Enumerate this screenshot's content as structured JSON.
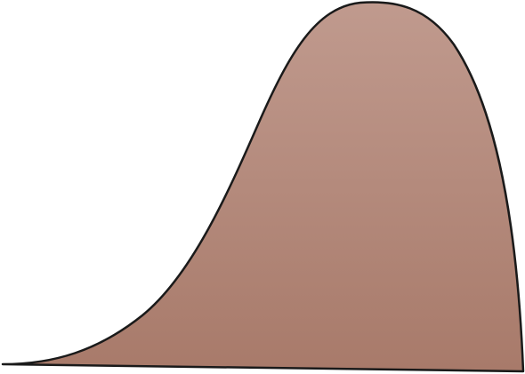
{
  "shape": {
    "kind": "skewed-bell-curve-area",
    "fill_top": "#c09a8e",
    "fill_bottom": "#a87a6a",
    "stroke": "#1a1a1a"
  }
}
